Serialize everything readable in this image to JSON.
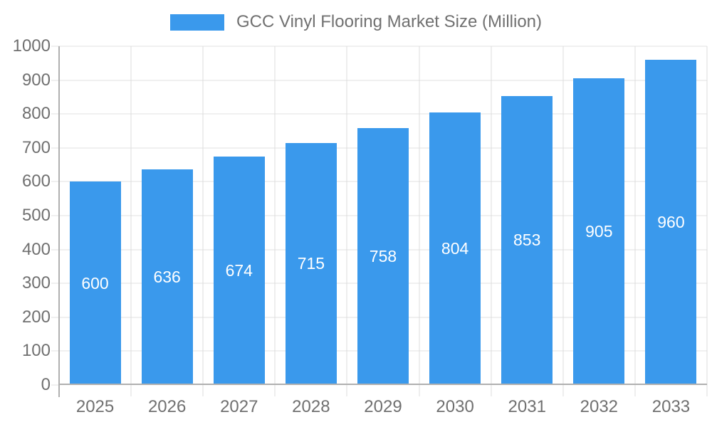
{
  "chart_data": {
    "type": "bar",
    "title": "GCC Vinyl Flooring Market Size (Million)",
    "legend": {
      "label": "GCC Vinyl Flooring Market Size (Million)",
      "position": "top"
    },
    "categories": [
      "2025",
      "2026",
      "2027",
      "2028",
      "2029",
      "2030",
      "2031",
      "2032",
      "2033"
    ],
    "values": [
      600,
      636,
      674,
      715,
      758,
      804,
      853,
      905,
      960
    ],
    "xlabel": "",
    "ylabel": "",
    "ylim": [
      0,
      1000
    ],
    "yticks": [
      0,
      100,
      200,
      300,
      400,
      500,
      600,
      700,
      800,
      900,
      1000
    ],
    "grid": true,
    "colors": {
      "bar": "#3A99EC",
      "grid": "#E2E2E2",
      "vgrid": "#DCDCDC",
      "axis": "#B0B0B0",
      "text": "#707070",
      "bar_label": "#FFFFFF",
      "background": "#FFFFFF"
    }
  }
}
